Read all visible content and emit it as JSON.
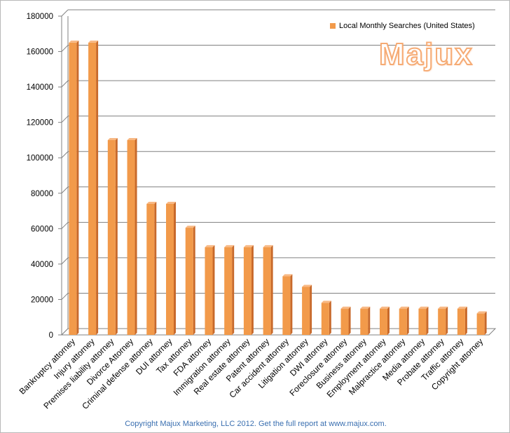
{
  "chart_data": {
    "type": "bar",
    "categories": [
      "Bankruptcy attorney",
      "Injury attorney",
      "Premises liability attorney",
      "Divorce Attorney",
      "Criminal defense attorney",
      "DUI attorney",
      "Tax attorney",
      "FDA attorney",
      "Immigration attorney",
      "Real estate attorney",
      "Patent attorney",
      "Car accident attorney",
      "Litigation attorney",
      "DWI attorney",
      "Foreclosure attorney",
      "Business attorney",
      "Employment attorney",
      "Malpractice attorney",
      "Media attorney",
      "Probate attorney",
      "Traffic attorney",
      "Copyright attorney"
    ],
    "series": [
      {
        "name": "Local Monthly Searches (United States)",
        "values": [
          165000,
          165000,
          110000,
          110000,
          74000,
          74000,
          60500,
          49500,
          49500,
          49500,
          49500,
          33100,
          27100,
          18100,
          14800,
          14800,
          14800,
          14800,
          14800,
          14800,
          14800,
          12100
        ]
      }
    ],
    "ylim": [
      0,
      180000
    ],
    "yticks": [
      0,
      20000,
      40000,
      60000,
      80000,
      100000,
      120000,
      140000,
      160000,
      180000
    ],
    "grid": true,
    "legend_position": "top-right",
    "bar_color": "#f29a4a",
    "bar_top_color": "#f8b985",
    "bar_side_color": "#c8692a"
  },
  "watermark": "Majux",
  "footer": "Copyright Majux Marketing, LLC 2012.  Get the full report at www.majux.com."
}
